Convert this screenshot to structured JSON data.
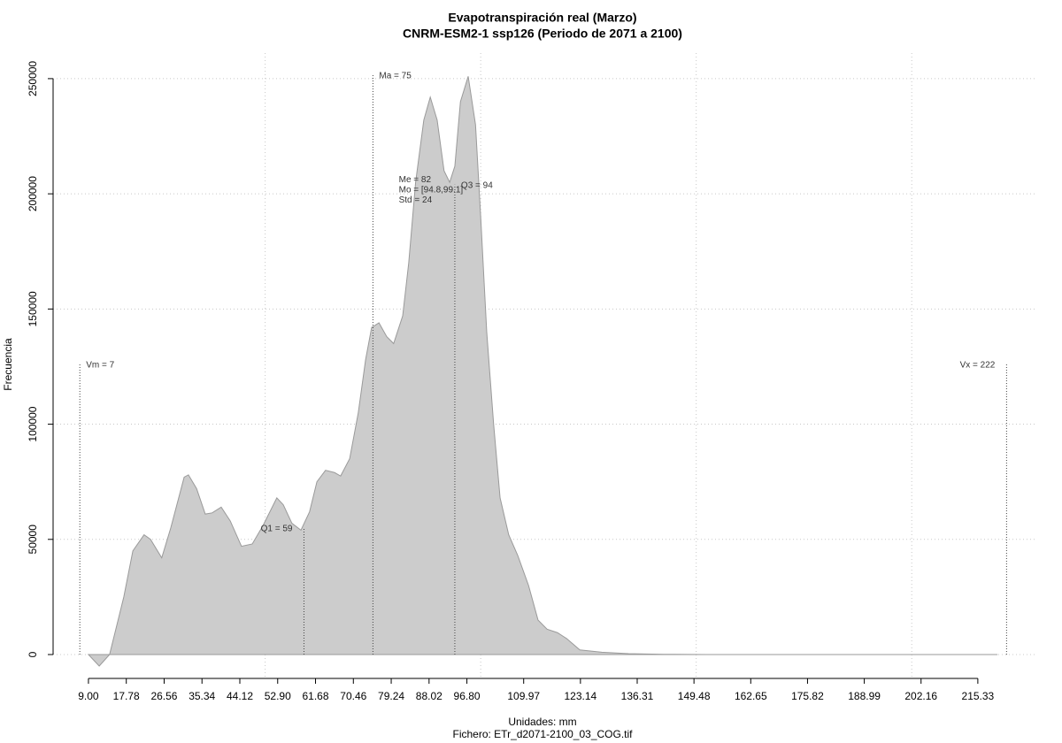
{
  "chart_data": {
    "type": "area",
    "title": "Evapotranspiración real (Marzo)",
    "subtitle": "CNRM-ESM2-1 ssp126 (Periodo de 2071 a 2100)",
    "x_label": "Unidades: mm",
    "caption": "Fichero: ETr_d2071-2100_03_COG.tif",
    "y_label": "Frecuencia",
    "x": [
      9.0,
      11.5,
      13.9,
      17.2,
      19.3,
      21.9,
      23.4,
      26.0,
      28.1,
      31.2,
      32.2,
      34.1,
      36.1,
      37.7,
      39.8,
      41.9,
      44.5,
      47.0,
      49.5,
      52.7,
      54.2,
      56.2,
      58.3,
      60.3,
      62.0,
      64.0,
      66.1,
      67.5,
      69.6,
      71.6,
      73.3,
      74.7,
      76.4,
      78.2,
      79.8,
      81.9,
      83.3,
      84.9,
      86.8,
      88.3,
      89.9,
      91.5,
      92.8,
      94.0,
      95.3,
      97.1,
      98.8,
      100.0,
      101.4,
      103.0,
      104.5,
      106.5,
      108.6,
      111.1,
      113.3,
      115.4,
      117.8,
      119.9,
      123.0,
      128.1,
      134.3,
      142.5,
      152.7,
      219.9
    ],
    "series": [
      {
        "name": "Frecuencia",
        "color": "#cccccc",
        "values": [
          0,
          -5000,
          0,
          25000,
          45000,
          52000,
          50000,
          42000,
          55000,
          77000,
          78000,
          72000,
          61000,
          61500,
          64000,
          58000,
          47000,
          48000,
          56000,
          68000,
          65000,
          57000,
          54000,
          62000,
          75000,
          80000,
          79000,
          77500,
          85000,
          105000,
          128000,
          142000,
          144000,
          138000,
          135000,
          147000,
          170000,
          205000,
          232000,
          242000,
          232000,
          210000,
          205000,
          212000,
          240000,
          251000,
          230000,
          190000,
          140000,
          100000,
          68000,
          52000,
          43000,
          30000,
          15000,
          11000,
          9500,
          7000,
          2000,
          1000,
          400,
          100,
          0,
          0
        ]
      }
    ],
    "xlim": [
      0.8,
      228.7
    ],
    "ylim": [
      -9600,
      261100
    ],
    "xticks": [
      {
        "value": 9.0,
        "label": "9.00"
      },
      17.78,
      26.56,
      35.34,
      44.12,
      {
        "value": 52.9,
        "label": "52.90"
      },
      61.68,
      70.46,
      79.24,
      88.02,
      {
        "value": 96.8,
        "label": "96.80"
      },
      109.97,
      123.14,
      136.31,
      149.48,
      162.65,
      175.82,
      188.99,
      202.16,
      215.33
    ],
    "yticks": [
      0,
      50000,
      100000,
      150000,
      200000,
      250000
    ],
    "xgrid": [
      50,
      100,
      150,
      200
    ],
    "grid": true,
    "markers": [
      {
        "label": "Vm = 7",
        "x": 7,
        "top": 126000
      },
      {
        "label": "Q1 = 59",
        "x": 59,
        "top": 55000
      },
      {
        "label": "Ma = 75",
        "x": 75,
        "top": 251500
      },
      {
        "label": "Q3 = 94",
        "x": 94,
        "top": 204000
      },
      {
        "label": "Vx = 222",
        "x": 222,
        "top": 126000
      }
    ],
    "stats": {
      "x": 81,
      "y": 206000,
      "lines": [
        "Me = 82",
        "Mo = [94.8,99.1]",
        "Std = 24"
      ]
    }
  }
}
